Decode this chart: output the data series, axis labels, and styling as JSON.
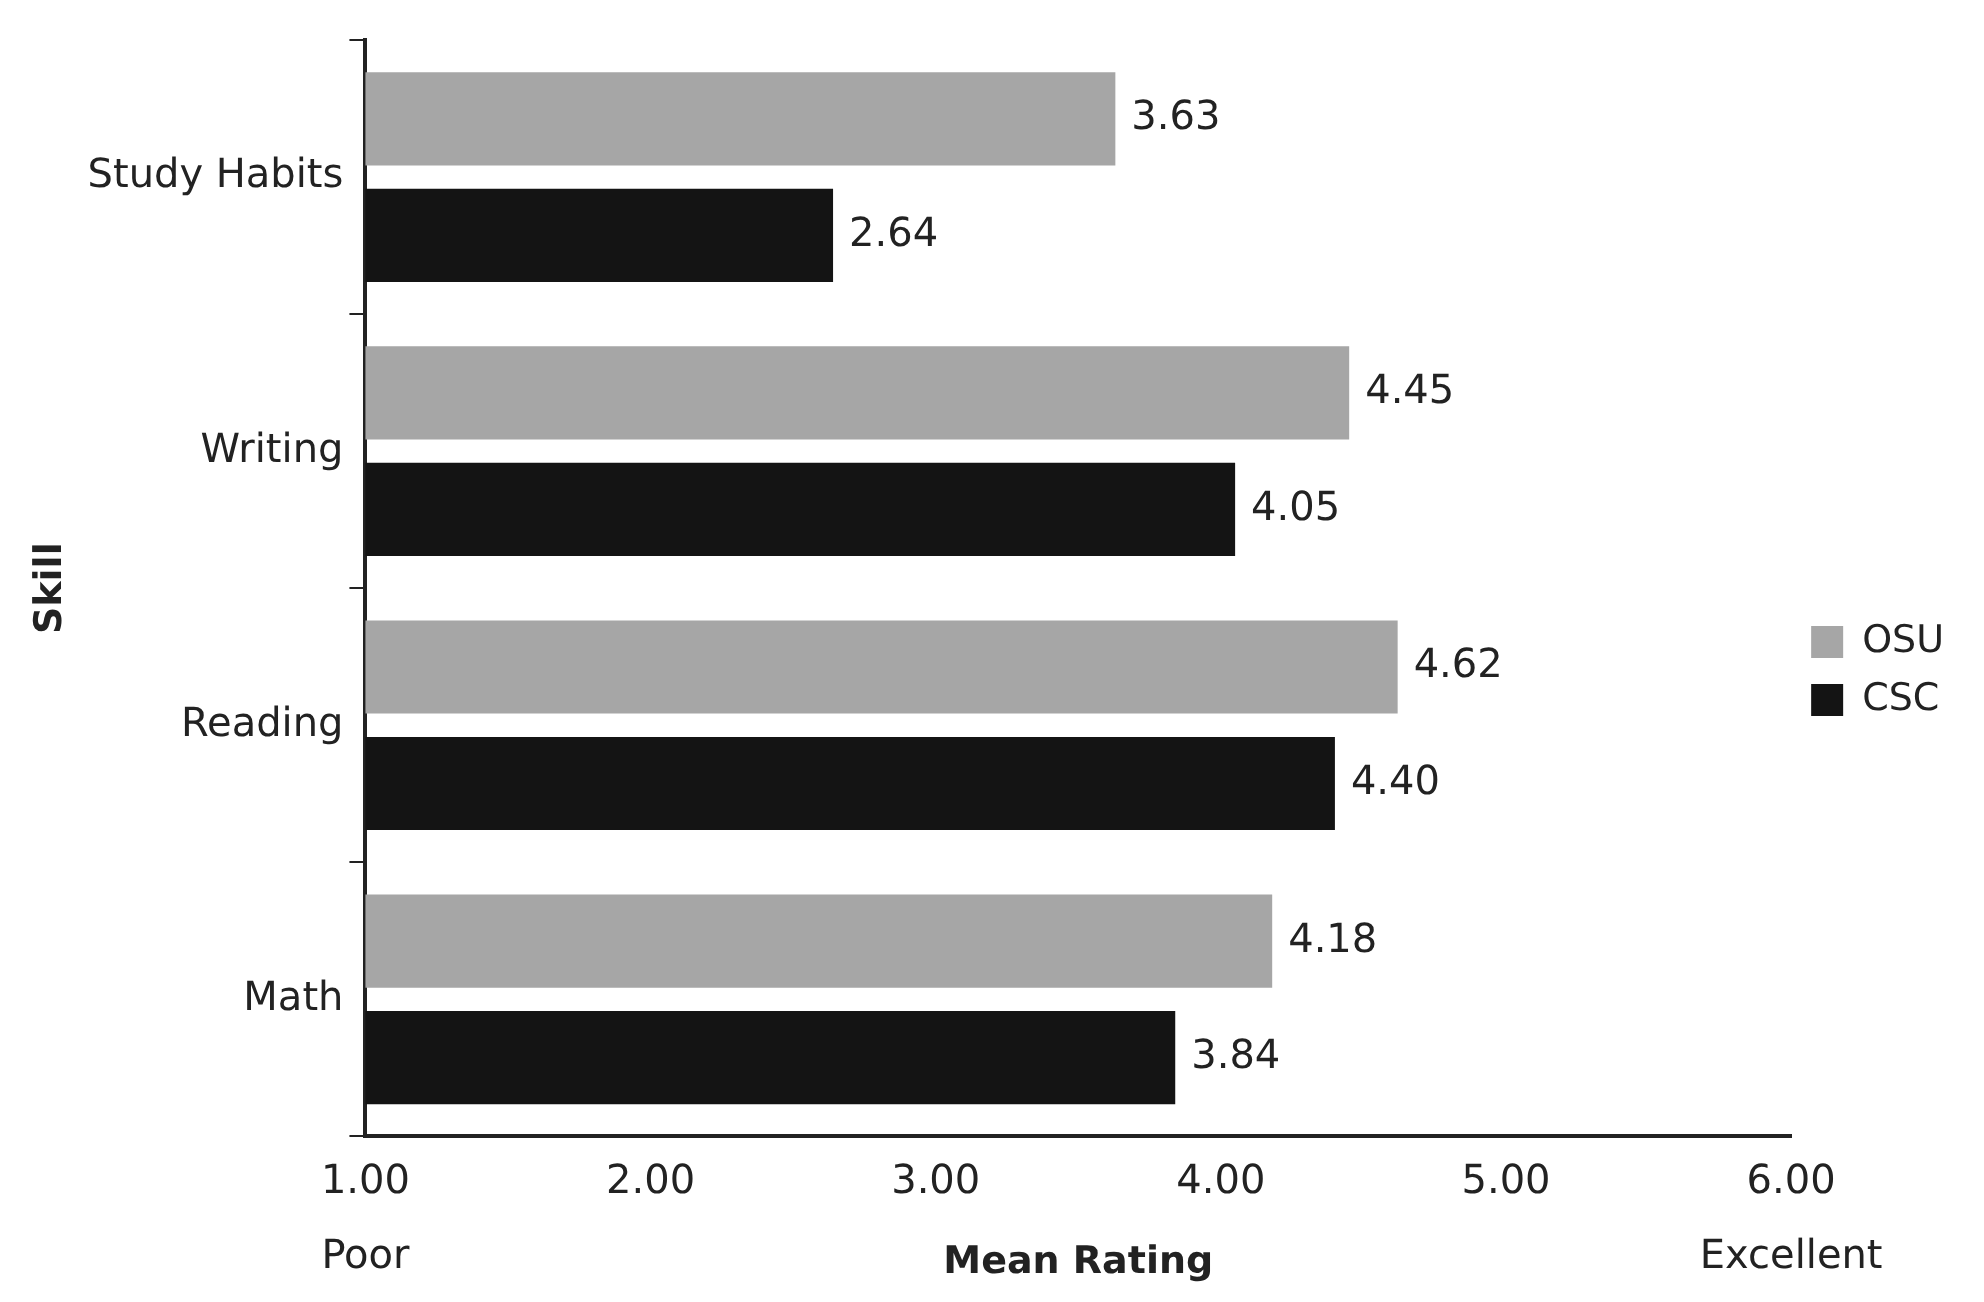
{
  "chart_data": {
    "type": "bar",
    "orientation": "horizontal",
    "xlabel": "Mean Rating",
    "ylabel": "Skill",
    "categories": [
      "Study Habits",
      "Writing",
      "Reading",
      "Math"
    ],
    "series": [
      {
        "name": "OSU",
        "color": "#a6a6a6",
        "values": [
          3.63,
          4.45,
          4.62,
          4.18
        ],
        "value_labels": [
          "3.63",
          "4.45",
          "4.62",
          "4.18"
        ]
      },
      {
        "name": "CSC",
        "color": "#141414",
        "values": [
          2.64,
          4.05,
          4.4,
          3.84
        ],
        "value_labels": [
          "2.64",
          "4.05",
          "4.40",
          "3.84"
        ]
      }
    ],
    "xlim": [
      1,
      6
    ],
    "xticks": [
      {
        "value": 1,
        "label": "1.00"
      },
      {
        "value": 2,
        "label": "2.00"
      },
      {
        "value": 3,
        "label": "3.00"
      },
      {
        "value": 4,
        "label": "4.00"
      },
      {
        "value": 5,
        "label": "5.00"
      },
      {
        "value": 6,
        "label": "6.00"
      }
    ],
    "annotations": [
      "Poor",
      "Excellent"
    ],
    "legend": "right",
    "grid": false
  }
}
